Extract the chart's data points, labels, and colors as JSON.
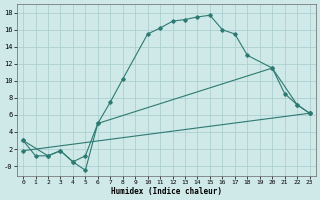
{
  "xlabel": "Humidex (Indice chaleur)",
  "xlim": [
    -0.5,
    23.5
  ],
  "ylim": [
    -1.2,
    19
  ],
  "xticks": [
    0,
    1,
    2,
    3,
    4,
    5,
    6,
    7,
    8,
    9,
    10,
    11,
    12,
    13,
    14,
    15,
    16,
    17,
    18,
    19,
    20,
    21,
    22,
    23
  ],
  "yticks": [
    0,
    2,
    4,
    6,
    8,
    10,
    12,
    14,
    16,
    18
  ],
  "yticklabels": [
    "-0",
    "2",
    "4",
    "6",
    "8",
    "10",
    "12",
    "14",
    "16",
    "18"
  ],
  "bg_color": "#cfe8e8",
  "grid_color": "#a8cccc",
  "line_color": "#2d7a72",
  "curve1_x": [
    0,
    1,
    2,
    3,
    4,
    5,
    6,
    7,
    8,
    10,
    11,
    12,
    13,
    14,
    15,
    16,
    17,
    18,
    20,
    21,
    22,
    23
  ],
  "curve1_y": [
    3.0,
    1.2,
    1.2,
    1.8,
    0.5,
    -0.5,
    5.0,
    7.5,
    10.2,
    15.5,
    16.2,
    17.0,
    17.2,
    17.5,
    17.7,
    16.0,
    15.5,
    13.0,
    11.5,
    8.5,
    7.2,
    6.2
  ],
  "curve2_x": [
    0,
    2,
    3,
    4,
    5,
    6,
    20,
    22,
    23
  ],
  "curve2_y": [
    3.0,
    1.2,
    1.8,
    0.5,
    1.2,
    5.0,
    11.5,
    7.2,
    6.2
  ],
  "curve3_x": [
    0,
    23
  ],
  "curve3_y": [
    1.8,
    6.2
  ]
}
